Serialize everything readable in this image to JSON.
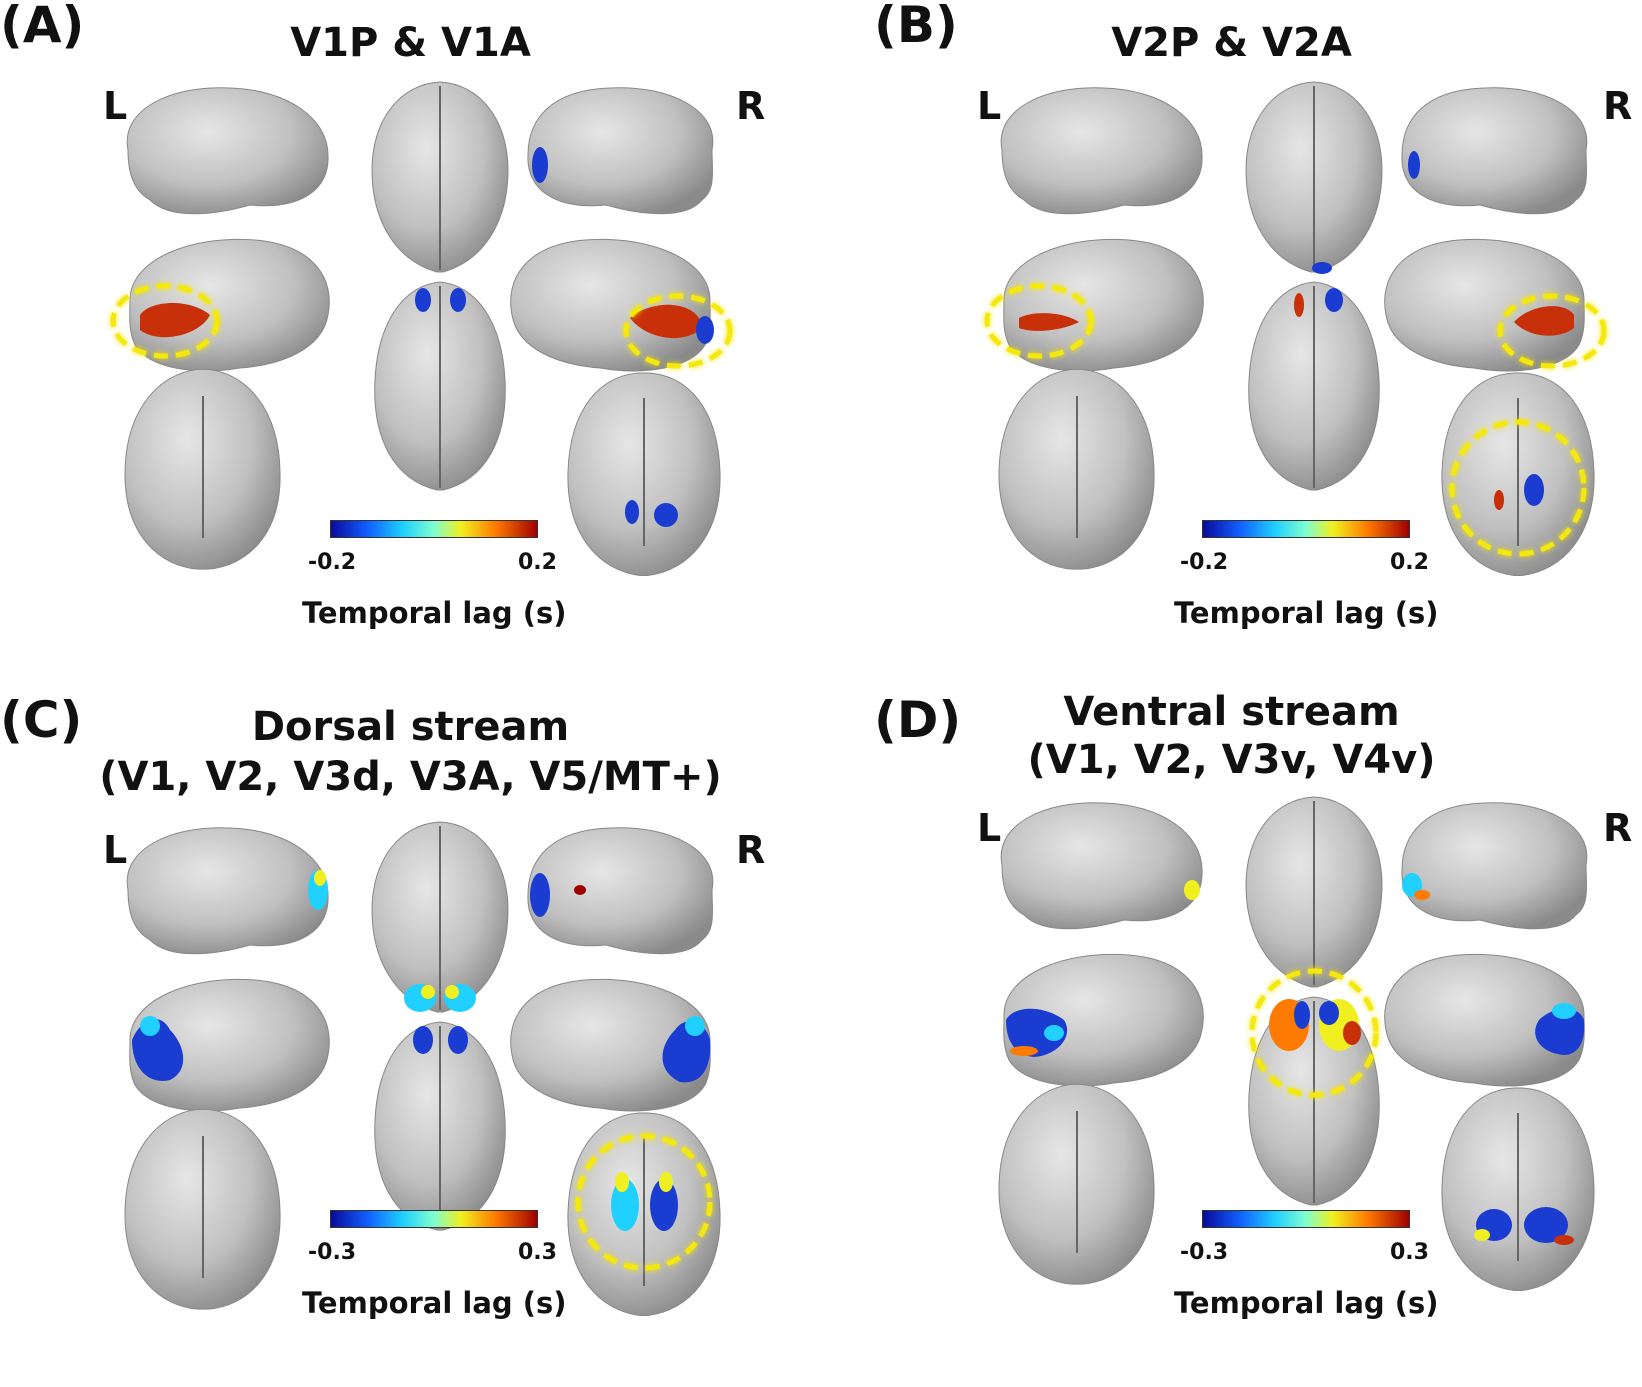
{
  "panels": [
    {
      "label": "(A)",
      "title_lines": [
        "V1P & V1A"
      ],
      "left": "L",
      "right": "R",
      "colorbar": {
        "min": "-0.2",
        "max": "0.2",
        "label": "Temporal lag (s)"
      }
    },
    {
      "label": "(B)",
      "title_lines": [
        "V2P & V2A"
      ],
      "left": "L",
      "right": "R",
      "colorbar": {
        "min": "-0.2",
        "max": "0.2",
        "label": "Temporal lag (s)"
      }
    },
    {
      "label": "(C)",
      "title_lines": [
        "Dorsal stream",
        "(V1, V2, V3d, V3A, V5/MT+)"
      ],
      "left": "L",
      "right": "R",
      "colorbar": {
        "min": "-0.3",
        "max": "0.3",
        "label": "Temporal lag (s)"
      }
    },
    {
      "label": "(D)",
      "title_lines": [
        "Ventral stream",
        "(V1, V2, V3v, V4v)"
      ],
      "left": "L",
      "right": "R",
      "colorbar": {
        "min": "-0.3",
        "max": "0.3",
        "label": "Temporal lag (s)"
      }
    }
  ],
  "colors": {
    "brain": "#c4c4c4",
    "brain_shade": "#8e8e8e",
    "highlight_circle": "#f5e80c",
    "colormap": [
      "#0a0a9a",
      "#1060ff",
      "#20d0ff",
      "#7fffcf",
      "#f0f020",
      "#ff7a00",
      "#a00000"
    ]
  }
}
